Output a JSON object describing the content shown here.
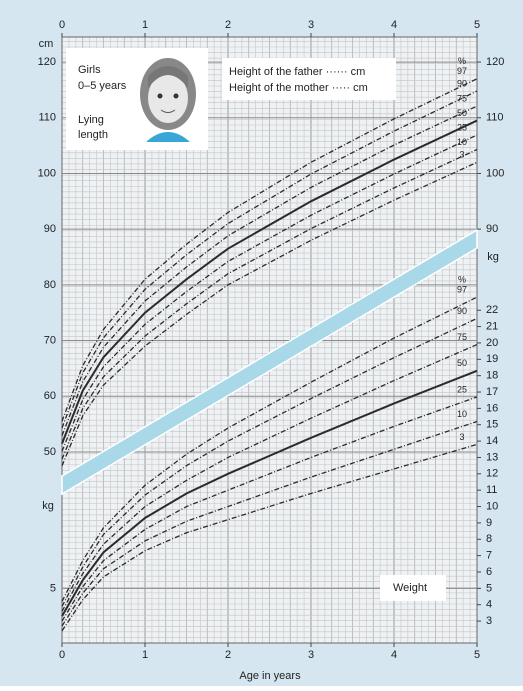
{
  "chart_data": [
    {
      "type": "line",
      "title": "Girls",
      "subtitle": "0–5 years",
      "label": [
        "Lying",
        "length"
      ],
      "annotations": [
        "Height of the father ······ cm",
        "Height of the mother ····· cm"
      ],
      "ylabel": "cm",
      "percent_label": "%",
      "color": "#2b2b2b",
      "x": [
        0,
        0.25,
        0.5,
        1,
        1.5,
        2,
        3,
        4,
        5
      ],
      "xlim": [
        0,
        5
      ],
      "xticks": [
        0,
        1,
        2,
        3,
        4,
        5
      ],
      "ylim": [
        15.7,
        124.5
      ],
      "yticks": [
        50,
        60,
        70,
        80,
        90,
        100,
        110,
        120
      ],
      "y2lim": [
        15.7,
        124.5
      ],
      "y2ticks": [
        90,
        100,
        110,
        120
      ],
      "series": [
        {
          "name": "97",
          "style": "dashed",
          "values": [
            55.5,
            65.5,
            72,
            81,
            87.3,
            93,
            102,
            109.8,
            117
          ]
        },
        {
          "name": "90",
          "style": "dashed",
          "values": [
            54.3,
            64.2,
            70.5,
            79.2,
            85.4,
            91,
            99.9,
            107.6,
            114.8
          ]
        },
        {
          "name": "75",
          "style": "dashed",
          "values": [
            52.9,
            62.6,
            68.8,
            77.1,
            83.2,
            88.8,
            97.5,
            105.1,
            112.1
          ]
        },
        {
          "name": "50",
          "style": "solid",
          "values": [
            51.5,
            61,
            67,
            75,
            81,
            86.5,
            95,
            102.5,
            109.5
          ]
        },
        {
          "name": "25",
          "style": "dashed",
          "values": [
            50.1,
            59.4,
            65.3,
            72.9,
            78.8,
            84.2,
            92.5,
            99.9,
            106.9
          ]
        },
        {
          "name": "10",
          "style": "dashed",
          "values": [
            48.7,
            57.8,
            63.5,
            70.8,
            76.6,
            82,
            90.1,
            97.4,
            104.3
          ]
        },
        {
          "name": "3",
          "style": "dashed",
          "values": [
            47.5,
            56.5,
            62,
            69,
            74.7,
            80,
            88,
            95.2,
            102
          ]
        }
      ]
    },
    {
      "type": "line",
      "title": "Weight",
      "ylabel": "kg",
      "y2label": "kg",
      "percent_label": "%",
      "color": "#2b2b2b",
      "xlabel": "Age in years",
      "x": [
        0,
        0.25,
        0.5,
        1,
        1.5,
        2,
        3,
        4,
        5
      ],
      "xlim": [
        0,
        5
      ],
      "xticks": [
        0,
        1,
        2,
        3,
        4,
        5
      ],
      "ylim": [
        1.66,
        38.7
      ],
      "yticks": [
        5
      ],
      "y2lim": [
        1.66,
        38.7
      ],
      "y2ticks": [
        3,
        4,
        5,
        6,
        7,
        8,
        9,
        10,
        11,
        12,
        13,
        14,
        15,
        16,
        17,
        18,
        19,
        20,
        21,
        22
      ],
      "series": [
        {
          "name": "97",
          "style": "dashed",
          "values": [
            4.2,
            6.7,
            8.7,
            11.3,
            13.2,
            14.8,
            17.6,
            20.3,
            22.8
          ]
        },
        {
          "name": "90",
          "style": "dashed",
          "values": [
            3.9,
            6.3,
            8.3,
            10.7,
            12.5,
            14,
            16.6,
            19.1,
            21.5
          ]
        },
        {
          "name": "75",
          "style": "dashed",
          "values": [
            3.6,
            5.9,
            7.7,
            10,
            11.6,
            13,
            15.4,
            17.7,
            19.9
          ]
        },
        {
          "name": "50",
          "style": "solid",
          "values": [
            3.3,
            5.5,
            7.2,
            9.3,
            10.8,
            12,
            14.2,
            16.3,
            18.3
          ]
        },
        {
          "name": "25",
          "style": "dashed",
          "values": [
            3,
            5.1,
            6.7,
            8.6,
            10,
            11,
            13,
            14.9,
            16.7
          ]
        },
        {
          "name": "10",
          "style": "dashed",
          "values": [
            2.7,
            4.7,
            6.2,
            7.9,
            9.1,
            10,
            11.8,
            13.5,
            15.2
          ]
        },
        {
          "name": "3",
          "style": "dashed",
          "values": [
            2.4,
            4.3,
            5.7,
            7.3,
            8.4,
            9.2,
            10.8,
            12.3,
            13.8
          ]
        }
      ]
    }
  ]
}
